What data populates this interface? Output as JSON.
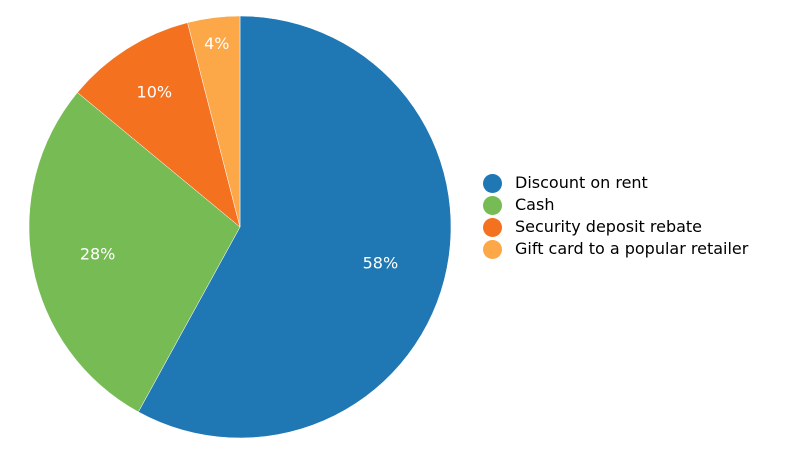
{
  "chart_data": {
    "type": "pie",
    "title": "",
    "legend_position": "right",
    "start_angle_deg": 0,
    "direction": "clockwise",
    "slices": [
      {
        "label": "Discount on rent",
        "value": 58,
        "display": "58%",
        "color": "#1f77b4"
      },
      {
        "label": "Cash",
        "value": 28,
        "display": "28%",
        "color": "#77bb55"
      },
      {
        "label": "Security deposit rebate",
        "value": 10,
        "display": "10%",
        "color": "#f4711f"
      },
      {
        "label": "Gift card to a popular retailer",
        "value": 4,
        "display": "4%",
        "color": "#fca748"
      }
    ]
  }
}
